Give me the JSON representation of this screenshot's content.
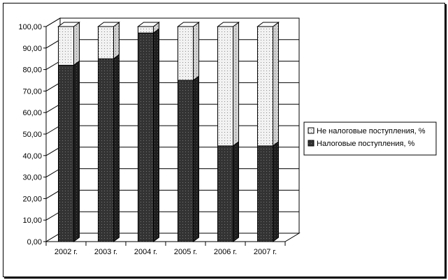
{
  "chart_data": {
    "type": "bar",
    "stacked": true,
    "three_d": true,
    "categories": [
      "2002 г.",
      "2003 г.",
      "2004 г.",
      "2005 г.",
      "2006 г.",
      "2007 г."
    ],
    "series": [
      {
        "name": "Налоговые поступления, %",
        "values": [
          82,
          85,
          97,
          75,
          44.5,
          44.5
        ],
        "color": "#3a3a3a"
      },
      {
        "name": "Не налоговые поступления, %",
        "values": [
          18,
          15,
          3,
          25,
          55.5,
          55.5
        ],
        "color": "#e6e6e6"
      }
    ],
    "y_ticks": [
      "0,00",
      "10,00",
      "20,00",
      "30,00",
      "40,00",
      "50,00",
      "60,00",
      "70,00",
      "80,00",
      "90,00",
      "100,00"
    ],
    "ylim": [
      0,
      100
    ],
    "grid": true,
    "legend_position": "right",
    "legend_order": [
      "Не налоговые поступления, %",
      "Налоговые поступления, %"
    ]
  }
}
